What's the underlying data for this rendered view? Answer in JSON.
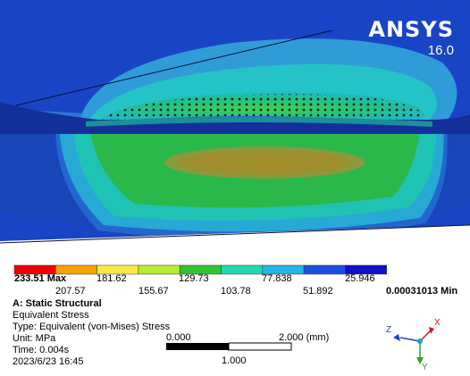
{
  "brand": {
    "name": "ANSYS",
    "version": "16.0"
  },
  "legend": {
    "max_label": "233.51 Max",
    "min_label": "0.00031013 Min",
    "top_values": [
      "181.62",
      "129.73",
      "77.838",
      "25.946"
    ],
    "bottom_values": [
      "207.57",
      "155.67",
      "103.78",
      "51.892"
    ],
    "colors": [
      "#ee0000",
      "#f4a300",
      "#f8e84a",
      "#b6ec33",
      "#30c530",
      "#20d9b0",
      "#21b6e6",
      "#1c4fe0",
      "#1010c8"
    ]
  },
  "info": {
    "title": "A: Static Structural",
    "result": "Equivalent Stress",
    "type": "Type: Equivalent (von-Mises) Stress",
    "unit": "Unit: MPa",
    "time": "Time: 0.004s",
    "date": "2023/6/23 16:45"
  },
  "scale": {
    "left": "0.000",
    "right": "2.000 (mm)",
    "mid": "1.000"
  },
  "triad": {
    "x": "X",
    "y": "Y",
    "z": "Z"
  }
}
